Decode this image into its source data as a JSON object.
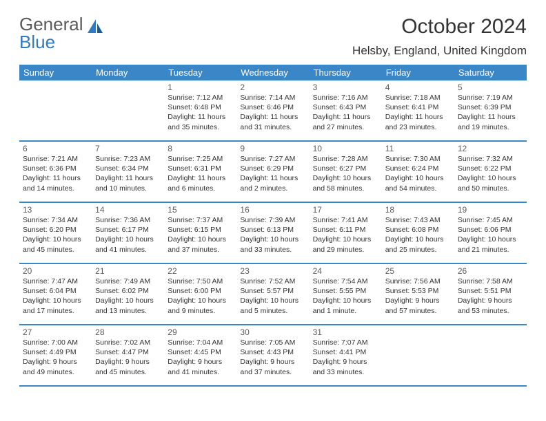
{
  "brand": {
    "text1": "General",
    "text2": "Blue",
    "icon_color": "#2f7ac0"
  },
  "title": "October 2024",
  "location": "Helsby, England, United Kingdom",
  "header_bg": "#3b86c6",
  "row_border": "#3b86c6",
  "day_headers": [
    "Sunday",
    "Monday",
    "Tuesday",
    "Wednesday",
    "Thursday",
    "Friday",
    "Saturday"
  ],
  "weeks": [
    [
      null,
      null,
      {
        "n": "1",
        "sr": "Sunrise: 7:12 AM",
        "ss": "Sunset: 6:48 PM",
        "dl1": "Daylight: 11 hours",
        "dl2": "and 35 minutes."
      },
      {
        "n": "2",
        "sr": "Sunrise: 7:14 AM",
        "ss": "Sunset: 6:46 PM",
        "dl1": "Daylight: 11 hours",
        "dl2": "and 31 minutes."
      },
      {
        "n": "3",
        "sr": "Sunrise: 7:16 AM",
        "ss": "Sunset: 6:43 PM",
        "dl1": "Daylight: 11 hours",
        "dl2": "and 27 minutes."
      },
      {
        "n": "4",
        "sr": "Sunrise: 7:18 AM",
        "ss": "Sunset: 6:41 PM",
        "dl1": "Daylight: 11 hours",
        "dl2": "and 23 minutes."
      },
      {
        "n": "5",
        "sr": "Sunrise: 7:19 AM",
        "ss": "Sunset: 6:39 PM",
        "dl1": "Daylight: 11 hours",
        "dl2": "and 19 minutes."
      }
    ],
    [
      {
        "n": "6",
        "sr": "Sunrise: 7:21 AM",
        "ss": "Sunset: 6:36 PM",
        "dl1": "Daylight: 11 hours",
        "dl2": "and 14 minutes."
      },
      {
        "n": "7",
        "sr": "Sunrise: 7:23 AM",
        "ss": "Sunset: 6:34 PM",
        "dl1": "Daylight: 11 hours",
        "dl2": "and 10 minutes."
      },
      {
        "n": "8",
        "sr": "Sunrise: 7:25 AM",
        "ss": "Sunset: 6:31 PM",
        "dl1": "Daylight: 11 hours",
        "dl2": "and 6 minutes."
      },
      {
        "n": "9",
        "sr": "Sunrise: 7:27 AM",
        "ss": "Sunset: 6:29 PM",
        "dl1": "Daylight: 11 hours",
        "dl2": "and 2 minutes."
      },
      {
        "n": "10",
        "sr": "Sunrise: 7:28 AM",
        "ss": "Sunset: 6:27 PM",
        "dl1": "Daylight: 10 hours",
        "dl2": "and 58 minutes."
      },
      {
        "n": "11",
        "sr": "Sunrise: 7:30 AM",
        "ss": "Sunset: 6:24 PM",
        "dl1": "Daylight: 10 hours",
        "dl2": "and 54 minutes."
      },
      {
        "n": "12",
        "sr": "Sunrise: 7:32 AM",
        "ss": "Sunset: 6:22 PM",
        "dl1": "Daylight: 10 hours",
        "dl2": "and 50 minutes."
      }
    ],
    [
      {
        "n": "13",
        "sr": "Sunrise: 7:34 AM",
        "ss": "Sunset: 6:20 PM",
        "dl1": "Daylight: 10 hours",
        "dl2": "and 45 minutes."
      },
      {
        "n": "14",
        "sr": "Sunrise: 7:36 AM",
        "ss": "Sunset: 6:17 PM",
        "dl1": "Daylight: 10 hours",
        "dl2": "and 41 minutes."
      },
      {
        "n": "15",
        "sr": "Sunrise: 7:37 AM",
        "ss": "Sunset: 6:15 PM",
        "dl1": "Daylight: 10 hours",
        "dl2": "and 37 minutes."
      },
      {
        "n": "16",
        "sr": "Sunrise: 7:39 AM",
        "ss": "Sunset: 6:13 PM",
        "dl1": "Daylight: 10 hours",
        "dl2": "and 33 minutes."
      },
      {
        "n": "17",
        "sr": "Sunrise: 7:41 AM",
        "ss": "Sunset: 6:11 PM",
        "dl1": "Daylight: 10 hours",
        "dl2": "and 29 minutes."
      },
      {
        "n": "18",
        "sr": "Sunrise: 7:43 AM",
        "ss": "Sunset: 6:08 PM",
        "dl1": "Daylight: 10 hours",
        "dl2": "and 25 minutes."
      },
      {
        "n": "19",
        "sr": "Sunrise: 7:45 AM",
        "ss": "Sunset: 6:06 PM",
        "dl1": "Daylight: 10 hours",
        "dl2": "and 21 minutes."
      }
    ],
    [
      {
        "n": "20",
        "sr": "Sunrise: 7:47 AM",
        "ss": "Sunset: 6:04 PM",
        "dl1": "Daylight: 10 hours",
        "dl2": "and 17 minutes."
      },
      {
        "n": "21",
        "sr": "Sunrise: 7:49 AM",
        "ss": "Sunset: 6:02 PM",
        "dl1": "Daylight: 10 hours",
        "dl2": "and 13 minutes."
      },
      {
        "n": "22",
        "sr": "Sunrise: 7:50 AM",
        "ss": "Sunset: 6:00 PM",
        "dl1": "Daylight: 10 hours",
        "dl2": "and 9 minutes."
      },
      {
        "n": "23",
        "sr": "Sunrise: 7:52 AM",
        "ss": "Sunset: 5:57 PM",
        "dl1": "Daylight: 10 hours",
        "dl2": "and 5 minutes."
      },
      {
        "n": "24",
        "sr": "Sunrise: 7:54 AM",
        "ss": "Sunset: 5:55 PM",
        "dl1": "Daylight: 10 hours",
        "dl2": "and 1 minute."
      },
      {
        "n": "25",
        "sr": "Sunrise: 7:56 AM",
        "ss": "Sunset: 5:53 PM",
        "dl1": "Daylight: 9 hours",
        "dl2": "and 57 minutes."
      },
      {
        "n": "26",
        "sr": "Sunrise: 7:58 AM",
        "ss": "Sunset: 5:51 PM",
        "dl1": "Daylight: 9 hours",
        "dl2": "and 53 minutes."
      }
    ],
    [
      {
        "n": "27",
        "sr": "Sunrise: 7:00 AM",
        "ss": "Sunset: 4:49 PM",
        "dl1": "Daylight: 9 hours",
        "dl2": "and 49 minutes."
      },
      {
        "n": "28",
        "sr": "Sunrise: 7:02 AM",
        "ss": "Sunset: 4:47 PM",
        "dl1": "Daylight: 9 hours",
        "dl2": "and 45 minutes."
      },
      {
        "n": "29",
        "sr": "Sunrise: 7:04 AM",
        "ss": "Sunset: 4:45 PM",
        "dl1": "Daylight: 9 hours",
        "dl2": "and 41 minutes."
      },
      {
        "n": "30",
        "sr": "Sunrise: 7:05 AM",
        "ss": "Sunset: 4:43 PM",
        "dl1": "Daylight: 9 hours",
        "dl2": "and 37 minutes."
      },
      {
        "n": "31",
        "sr": "Sunrise: 7:07 AM",
        "ss": "Sunset: 4:41 PM",
        "dl1": "Daylight: 9 hours",
        "dl2": "and 33 minutes."
      },
      null,
      null
    ]
  ]
}
